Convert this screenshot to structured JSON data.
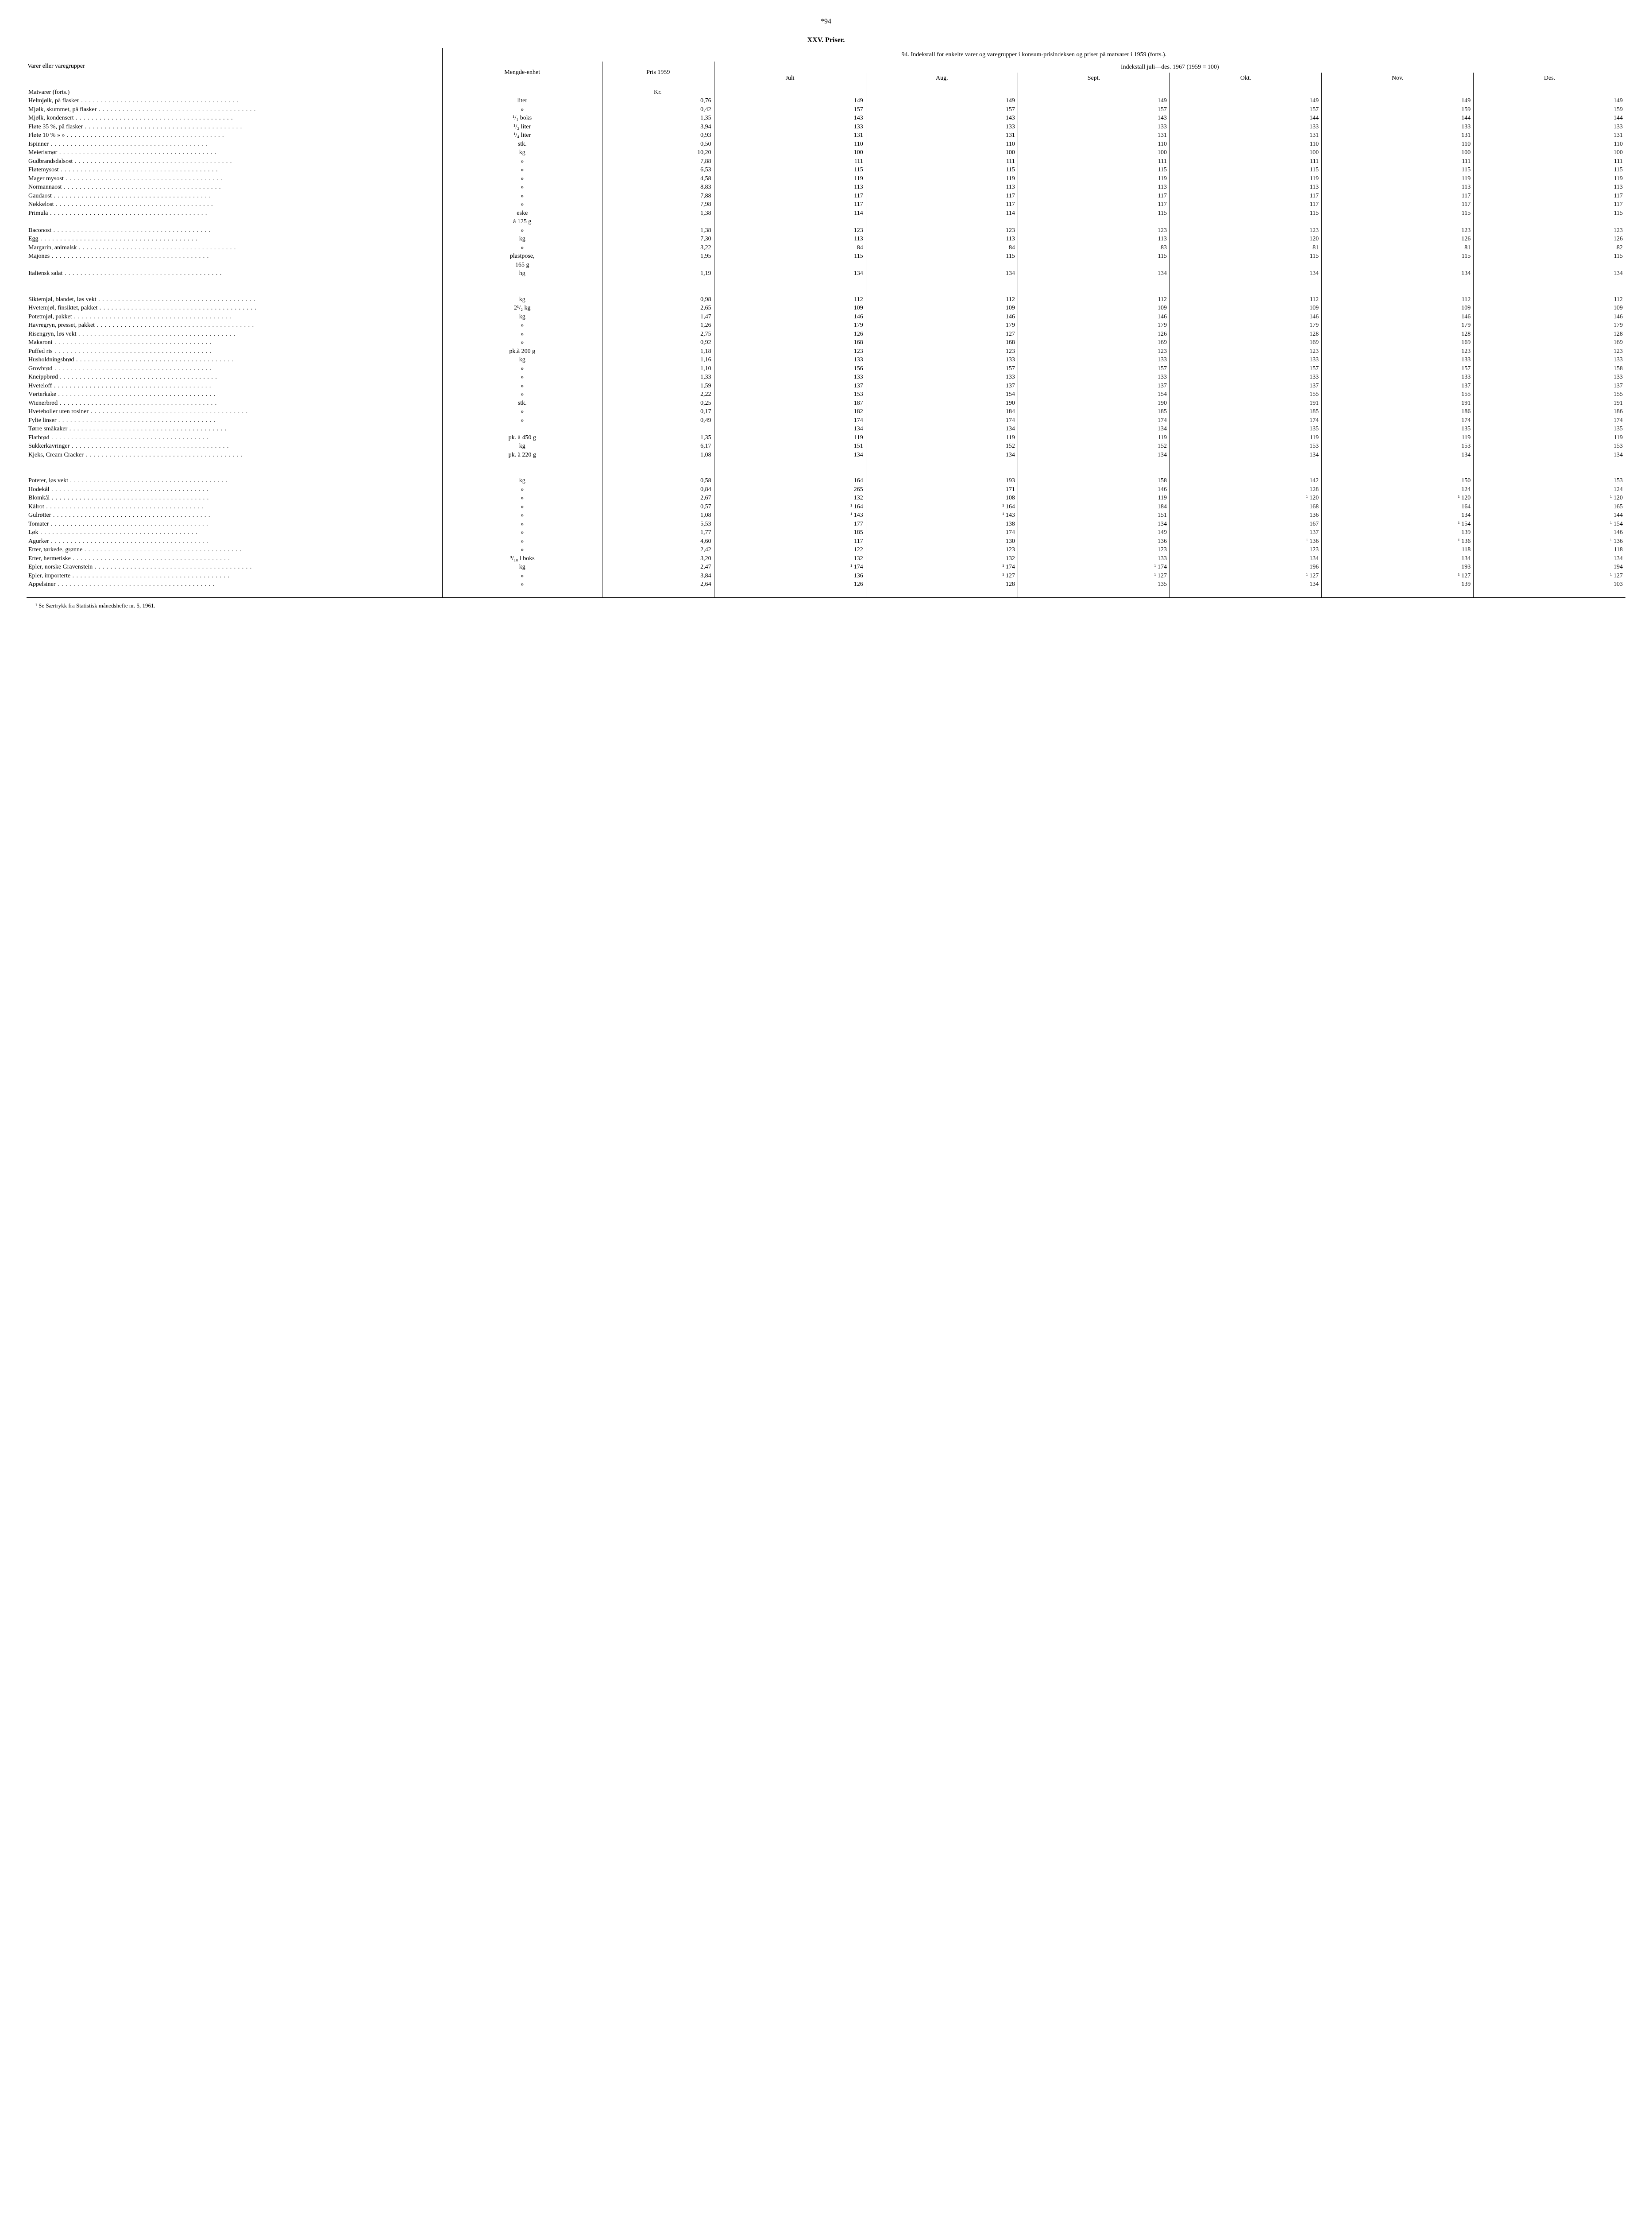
{
  "page_number": "*94",
  "chapter_title": "XXV. Priser.",
  "table_caption": "94. Indekstall for enkelte varer og varegrupper i konsum-prisindeksen og priser på matvarer i 1959 (forts.).",
  "col_headers": {
    "label": "Varer eller varegrupper",
    "unit": "Mengde-enhet",
    "price": "Pris 1959",
    "index_span": "Indekstall juli—des. 1967 (1959 = 100)",
    "months": [
      "Juli",
      "Aug.",
      "Sept.",
      "Okt.",
      "Nov.",
      "Des."
    ]
  },
  "section_header": {
    "label": "Matvarer (forts.)",
    "price_label": "Kr."
  },
  "rows": [
    {
      "label": "Helmjølk, på flasker",
      "unit": "liter",
      "price": "0,76",
      "idx": [
        "149",
        "149",
        "149",
        "149",
        "149",
        "149"
      ]
    },
    {
      "label": "Mjølk, skummet, på flasker",
      "unit": "»",
      "price": "0,42",
      "idx": [
        "157",
        "157",
        "157",
        "157",
        "159",
        "159"
      ]
    },
    {
      "label": "Mjølk, kondensert",
      "unit": "¹/₁ boks",
      "price": "1,35",
      "idx": [
        "143",
        "143",
        "143",
        "144",
        "144",
        "144"
      ]
    },
    {
      "label": "Fløte 35 %, på flasker",
      "unit": "¹/₂ liter",
      "price": "3,94",
      "idx": [
        "133",
        "133",
        "133",
        "133",
        "133",
        "133"
      ]
    },
    {
      "label": "Fløte 10 %   »      »",
      "unit": "¹/₄ liter",
      "price": "0,93",
      "idx": [
        "131",
        "131",
        "131",
        "131",
        "131",
        "131"
      ]
    },
    {
      "label": "Ispinner",
      "unit": "stk.",
      "price": "0,50",
      "idx": [
        "110",
        "110",
        "110",
        "110",
        "110",
        "110"
      ]
    },
    {
      "label": "Meierismør",
      "unit": "kg",
      "price": "10,20",
      "idx": [
        "100",
        "100",
        "100",
        "100",
        "100",
        "100"
      ]
    },
    {
      "label": "Gudbrandsdalsost",
      "unit": "»",
      "price": "7,88",
      "idx": [
        "111",
        "111",
        "111",
        "111",
        "111",
        "111"
      ]
    },
    {
      "label": "Fløtemysost",
      "unit": "»",
      "price": "6,53",
      "idx": [
        "115",
        "115",
        "115",
        "115",
        "115",
        "115"
      ]
    },
    {
      "label": "Mager mysost",
      "unit": "»",
      "price": "4,58",
      "idx": [
        "119",
        "119",
        "119",
        "119",
        "119",
        "119"
      ]
    },
    {
      "label": "Normannaost",
      "unit": "»",
      "price": "8,83",
      "idx": [
        "113",
        "113",
        "113",
        "113",
        "113",
        "113"
      ]
    },
    {
      "label": "Gaudaost",
      "unit": "»",
      "price": "7,88",
      "idx": [
        "117",
        "117",
        "117",
        "117",
        "117",
        "117"
      ]
    },
    {
      "label": "Nøkkelost",
      "unit": "»",
      "price": "7,98",
      "idx": [
        "117",
        "117",
        "117",
        "117",
        "117",
        "117"
      ]
    },
    {
      "label": "Primula",
      "unit": "eske",
      "price": "1,38",
      "idx": [
        "114",
        "114",
        "115",
        "115",
        "115",
        "115"
      ],
      "extra_unit": "à 125 g"
    },
    {
      "label": "Baconost",
      "unit": "»",
      "price": "1,38",
      "idx": [
        "123",
        "123",
        "123",
        "123",
        "123",
        "123"
      ]
    },
    {
      "label": "Egg",
      "unit": "kg",
      "price": "7,30",
      "idx": [
        "113",
        "113",
        "113",
        "120",
        "126",
        "126"
      ]
    },
    {
      "label": "Margarin, animalsk",
      "unit": "»",
      "price": "3,22",
      "idx": [
        "84",
        "84",
        "83",
        "81",
        "81",
        "82"
      ]
    },
    {
      "label": "Majones",
      "unit": "plastpose,",
      "price": "1,95",
      "idx": [
        "115",
        "115",
        "115",
        "115",
        "115",
        "115"
      ],
      "extra_unit": "165 g"
    },
    {
      "label": "Italiensk salat",
      "unit": "hg",
      "price": "1,19",
      "idx": [
        "134",
        "134",
        "134",
        "134",
        "134",
        "134"
      ],
      "gap_before": false,
      "gap_after": true
    },
    {
      "label": "Siktemjøl, blandet, løs vekt",
      "unit": "kg",
      "price": "0,98",
      "idx": [
        "112",
        "112",
        "112",
        "112",
        "112",
        "112"
      ],
      "gap_before": true
    },
    {
      "label": "Hvetemjøl, finsiktet, pakket",
      "unit": "2¹/₂ kg",
      "price": "2,65",
      "idx": [
        "109",
        "109",
        "109",
        "109",
        "109",
        "109"
      ]
    },
    {
      "label": "Potetmjøl, pakket",
      "unit": "kg",
      "price": "1,47",
      "idx": [
        "146",
        "146",
        "146",
        "146",
        "146",
        "146"
      ]
    },
    {
      "label": "Havregryn, presset, pakket",
      "unit": "»",
      "price": "1,26",
      "idx": [
        "179",
        "179",
        "179",
        "179",
        "179",
        "179"
      ]
    },
    {
      "label": "Risengryn, løs vekt",
      "unit": "»",
      "price": "2,75",
      "idx": [
        "126",
        "127",
        "126",
        "128",
        "128",
        "128"
      ]
    },
    {
      "label": "Makaroni",
      "unit": "»",
      "price": "0,92",
      "idx": [
        "168",
        "168",
        "169",
        "169",
        "169",
        "169"
      ]
    },
    {
      "label": "Puffed ris",
      "unit": "pk.à 200 g",
      "price": "1,18",
      "idx": [
        "123",
        "123",
        "123",
        "123",
        "123",
        "123"
      ]
    },
    {
      "label": "Husholdningsbrød",
      "unit": "kg",
      "price": "1,16",
      "idx": [
        "133",
        "133",
        "133",
        "133",
        "133",
        "133"
      ]
    },
    {
      "label": "Grovbrød",
      "unit": "»",
      "price": "1,10",
      "idx": [
        "156",
        "157",
        "157",
        "157",
        "157",
        "158"
      ]
    },
    {
      "label": "Kneippbrød",
      "unit": "»",
      "price": "1,33",
      "idx": [
        "133",
        "133",
        "133",
        "133",
        "133",
        "133"
      ]
    },
    {
      "label": "Hveteloff",
      "unit": "»",
      "price": "1,59",
      "idx": [
        "137",
        "137",
        "137",
        "137",
        "137",
        "137"
      ]
    },
    {
      "label": "Vørterkake",
      "unit": "»",
      "price": "2,22",
      "idx": [
        "153",
        "154",
        "154",
        "155",
        "155",
        "155"
      ]
    },
    {
      "label": "Wienerbrød",
      "unit": "stk.",
      "price": "0,25",
      "idx": [
        "187",
        "190",
        "190",
        "191",
        "191",
        "191"
      ]
    },
    {
      "label": "Hveteboller uten rosiner",
      "unit": "»",
      "price": "0,17",
      "idx": [
        "182",
        "184",
        "185",
        "185",
        "186",
        "186"
      ]
    },
    {
      "label": "Fylte linser",
      "unit": "»",
      "price": "0,49",
      "idx": [
        "174",
        "174",
        "174",
        "174",
        "174",
        "174"
      ]
    },
    {
      "label": "Tørre småkaker",
      "unit": "",
      "price": "",
      "idx": [
        "134",
        "134",
        "134",
        "135",
        "135",
        "135"
      ]
    },
    {
      "label": "Flatbrød",
      "unit": "pk. à 450 g",
      "price": "1,35",
      "idx": [
        "119",
        "119",
        "119",
        "119",
        "119",
        "119"
      ]
    },
    {
      "label": "Sukkerkavringer",
      "unit": "kg",
      "price": "6,17",
      "idx": [
        "151",
        "152",
        "152",
        "153",
        "153",
        "153"
      ]
    },
    {
      "label": "Kjeks, Cream Cracker",
      "unit": "pk. à 220 g",
      "price": "1,08",
      "idx": [
        "134",
        "134",
        "134",
        "134",
        "134",
        "134"
      ],
      "gap_after": true
    },
    {
      "label": "Poteter, løs vekt",
      "unit": "kg",
      "price": "0,58",
      "idx": [
        "164",
        "193",
        "158",
        "142",
        "150",
        "153"
      ],
      "gap_before": true
    },
    {
      "label": "Hodekål",
      "unit": "»",
      "price": "0,84",
      "idx": [
        "265",
        "171",
        "146",
        "128",
        "124",
        "124"
      ]
    },
    {
      "label": "Blomkål",
      "unit": "»",
      "price": "2,67",
      "idx": [
        "132",
        "108",
        "119",
        "¹ 120",
        "¹ 120",
        "¹ 120"
      ]
    },
    {
      "label": "Kålrot",
      "unit": "»",
      "price": "0,57",
      "idx": [
        "¹ 164",
        "¹ 164",
        "184",
        "168",
        "164",
        "165"
      ]
    },
    {
      "label": "Gulrøtter",
      "unit": "»",
      "price": "1,08",
      "idx": [
        "¹ 143",
        "¹ 143",
        "151",
        "136",
        "134",
        "144"
      ]
    },
    {
      "label": "Tomater",
      "unit": "»",
      "price": "5,53",
      "idx": [
        "177",
        "138",
        "134",
        "167",
        "¹ 154",
        "¹ 154"
      ]
    },
    {
      "label": "Løk",
      "unit": "»",
      "price": "1,77",
      "idx": [
        "185",
        "174",
        "149",
        "137",
        "139",
        "146"
      ]
    },
    {
      "label": "Agurker",
      "unit": "»",
      "price": "4,60",
      "idx": [
        "117",
        "130",
        "136",
        "¹ 136",
        "¹ 136",
        "¹ 136"
      ]
    },
    {
      "label": "Erter, tørkede, grønne",
      "unit": "»",
      "price": "2,42",
      "idx": [
        "122",
        "123",
        "123",
        "123",
        "118",
        "118"
      ]
    },
    {
      "label": "Erter, hermetiske",
      "unit": "⁹/₁₀ l boks",
      "price": "3,20",
      "idx": [
        "132",
        "132",
        "133",
        "134",
        "134",
        "134"
      ]
    },
    {
      "label": "Epler, norske Gravenstein",
      "unit": "kg",
      "price": "2,47",
      "idx": [
        "¹ 174",
        "¹ 174",
        "¹ 174",
        "196",
        "193",
        "194"
      ]
    },
    {
      "label": "Epler, importerte",
      "unit": "»",
      "price": "3,84",
      "idx": [
        "136",
        "¹ 127",
        "¹ 127",
        "¹ 127",
        "¹ 127",
        "¹ 127"
      ]
    },
    {
      "label": "Appelsiner",
      "unit": "»",
      "price": "2,64",
      "idx": [
        "126",
        "128",
        "135",
        "134",
        "139",
        "103"
      ]
    }
  ],
  "footnote": "¹ Se Særtrykk fra Statistisk månedshefte nr. 5, 1961."
}
